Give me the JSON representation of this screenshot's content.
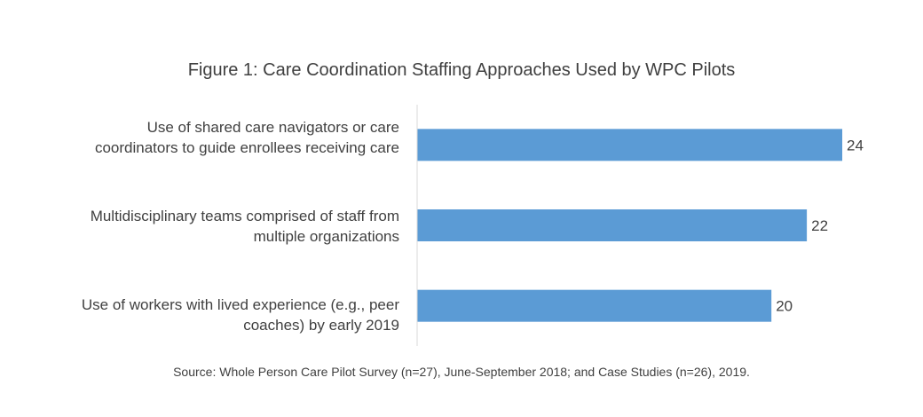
{
  "chart_data": {
    "type": "bar",
    "orientation": "horizontal",
    "title": "Figure 1: Care Coordination Staffing Approaches Used by WPC Pilots",
    "source": "Source: Whole Person Care Pilot Survey (n=27), June-September  2018; and Case Studies (n=26), 2019.",
    "categories": [
      "Use of shared care navigators or care\ncoordinators to guide enrollees receiving care",
      "Multidisciplinary teams comprised of staff from\nmultiple organizations",
      "Use of workers with lived experience (e.g., peer\ncoaches) by early 2019"
    ],
    "values": [
      24,
      22,
      20
    ],
    "data_labels": [
      "24",
      "22",
      "20"
    ],
    "xlim": [
      0,
      24.8
    ],
    "grid": false,
    "legend": "none",
    "bar_color": "#5b9bd5",
    "axis_color": "#d9d9d9"
  }
}
